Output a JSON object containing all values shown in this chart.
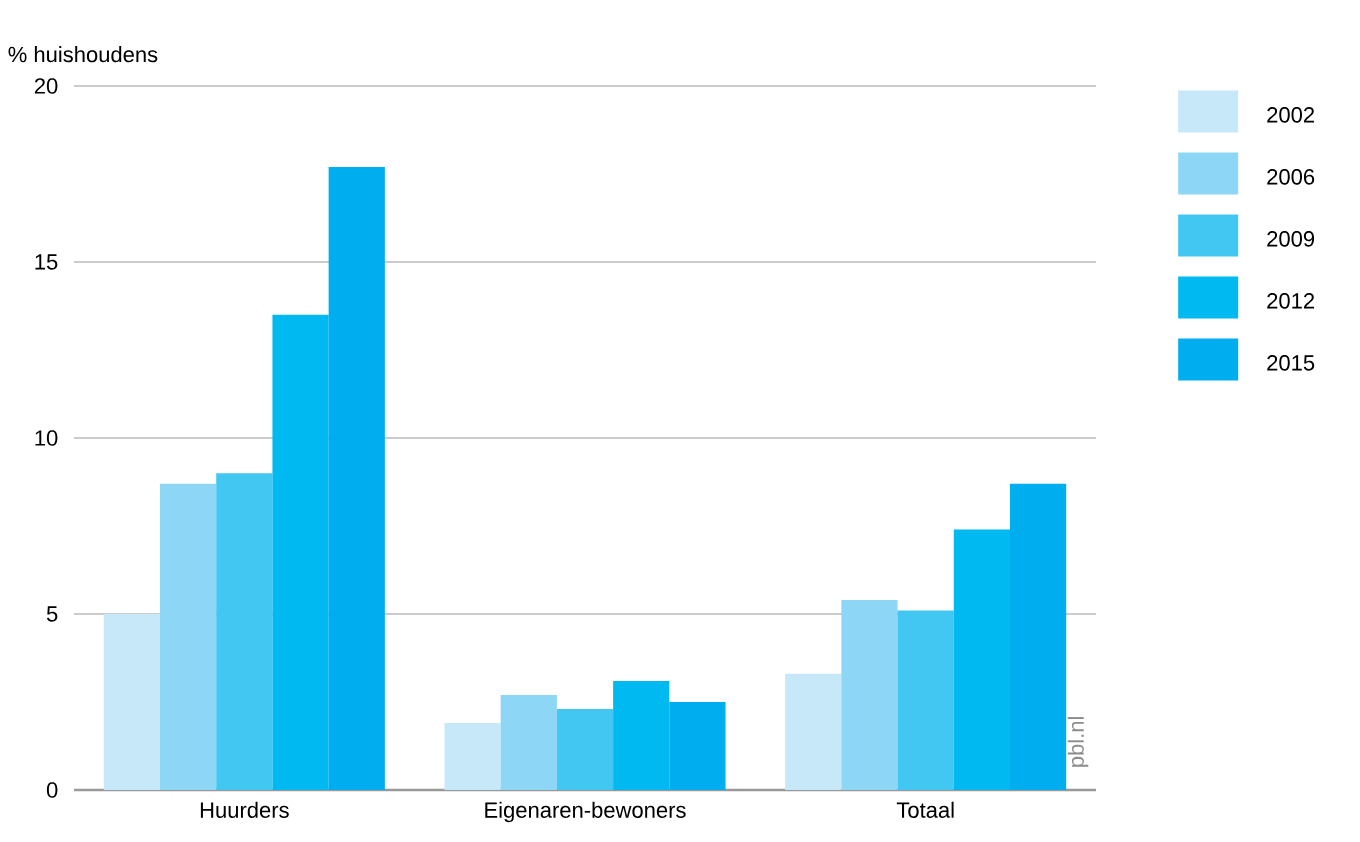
{
  "chart_data": {
    "type": "bar",
    "ylabel": "% huishoudens",
    "categories": [
      "Huurders",
      "Eigenaren-bewoners",
      "Totaal"
    ],
    "series": [
      {
        "name": "2002",
        "color": "#c6e8f9",
        "values": [
          5.0,
          1.9,
          3.3
        ]
      },
      {
        "name": "2006",
        "color": "#8ed6f6",
        "values": [
          8.7,
          2.7,
          5.4
        ]
      },
      {
        "name": "2009",
        "color": "#42c6f2",
        "values": [
          9.0,
          2.3,
          5.1
        ]
      },
      {
        "name": "2012",
        "color": "#00b9f1",
        "values": [
          13.5,
          3.1,
          7.4
        ]
      },
      {
        "name": "2015",
        "color": "#00aeef",
        "values": [
          17.7,
          2.5,
          8.7
        ]
      }
    ],
    "ylim": [
      0,
      20
    ],
    "yticks": [
      0,
      5,
      10,
      15,
      20
    ],
    "grid": "y",
    "legend": "top right",
    "annotations": [
      "pbl.nl"
    ]
  }
}
